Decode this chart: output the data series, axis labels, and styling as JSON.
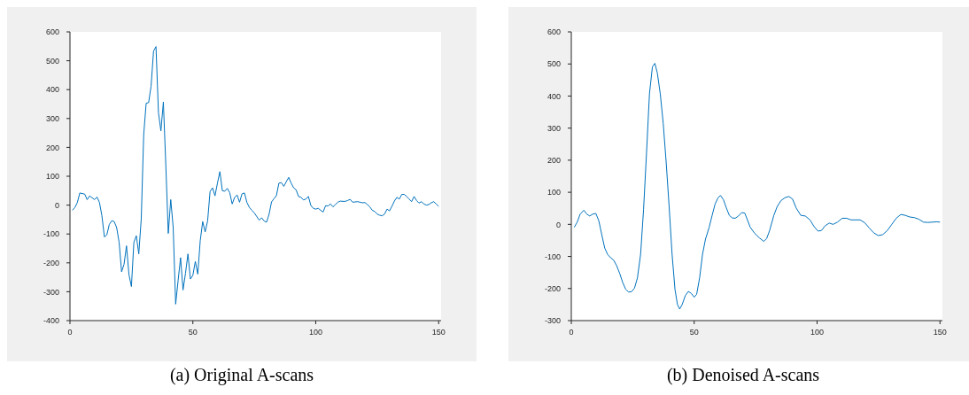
{
  "chart_data": [
    {
      "type": "line",
      "title": "(a) Original A-scans",
      "xlim": [
        0,
        151
      ],
      "xticks": [
        0,
        50,
        100,
        150
      ],
      "ylim": [
        -400,
        600
      ],
      "yticks": [
        -400,
        -300,
        -200,
        -100,
        0,
        100,
        200,
        300,
        400,
        500,
        600
      ],
      "marker": "none",
      "line_style": "solid",
      "series": [
        {
          "color": "#0072bd",
          "x": [
            1,
            2,
            3,
            4,
            6,
            7,
            8,
            10,
            11,
            12,
            13,
            14,
            15,
            16,
            17,
            18,
            19,
            20,
            21,
            22,
            23,
            24,
            25,
            26,
            27,
            28,
            29,
            30,
            31,
            32,
            33,
            34,
            35,
            36,
            37,
            38,
            39,
            40,
            41,
            42,
            43,
            44,
            45,
            46,
            47,
            48,
            49,
            50,
            51,
            52,
            53,
            54,
            55,
            56,
            57,
            58,
            59,
            60,
            61,
            62,
            63,
            64,
            65,
            66,
            67,
            68,
            69,
            70,
            71,
            72,
            73,
            74,
            75,
            77,
            78,
            79,
            80,
            81,
            82,
            83,
            84,
            85,
            86,
            87,
            88,
            89,
            90,
            91,
            92,
            93,
            94,
            95,
            96,
            97,
            98,
            99,
            100,
            101,
            102,
            103,
            104,
            105,
            106,
            107,
            108,
            109,
            110,
            111,
            112,
            113,
            114,
            115,
            116,
            117,
            118,
            119,
            120,
            121,
            122,
            123,
            124,
            125,
            126,
            127,
            128,
            129,
            130,
            131,
            132,
            133,
            134,
            135,
            136,
            137,
            138,
            139,
            140,
            141,
            142,
            143,
            144,
            145,
            146,
            147,
            148,
            149,
            150
          ],
          "values": [
            -18,
            -8,
            9,
            42,
            38,
            19,
            32,
            19,
            28,
            9,
            -37,
            -110,
            -103,
            -67,
            -54,
            -57,
            -78,
            -129,
            -231,
            -205,
            -141,
            -241,
            -282,
            -129,
            -106,
            -169,
            -47,
            244,
            353,
            355,
            412,
            533,
            549,
            320,
            257,
            357,
            137,
            -98,
            19,
            -78,
            -343,
            -261,
            -182,
            -294,
            -236,
            -169,
            -256,
            -243,
            -195,
            -239,
            -123,
            -57,
            -93,
            -55,
            47,
            60,
            32,
            76,
            116,
            50,
            48,
            58,
            43,
            4,
            27,
            35,
            10,
            39,
            42,
            9,
            -8,
            -18,
            -27,
            -52,
            -44,
            -55,
            -59,
            -32,
            11,
            22,
            33,
            76,
            78,
            65,
            81,
            96,
            76,
            60,
            53,
            30,
            27,
            18,
            21,
            30,
            -1,
            -11,
            -14,
            -11,
            -18,
            -24,
            -2,
            -3,
            4,
            -6,
            2,
            10,
            14,
            13,
            13,
            16,
            20,
            10,
            11,
            12,
            10,
            8,
            9,
            2,
            -6,
            -18,
            -22,
            -31,
            -35,
            -37,
            -31,
            -14,
            -20,
            -4,
            14,
            27,
            21,
            37,
            37,
            30,
            21,
            12,
            30,
            16,
            7,
            12,
            4,
            0,
            2,
            8,
            12,
            4,
            -4
          ]
        }
      ]
    },
    {
      "type": "line",
      "title": "(b) Denoised A-scans",
      "xlim": [
        0,
        151
      ],
      "xticks": [
        0,
        50,
        100,
        150
      ],
      "ylim": [
        -300,
        600
      ],
      "yticks": [
        -300,
        -200,
        -100,
        0,
        100,
        200,
        300,
        400,
        500,
        600
      ],
      "marker": "none",
      "line_style": "solid",
      "series": [
        {
          "color": "#0072bd",
          "x": [
            1.2,
            2.4,
            3.6,
            5.1,
            6.3,
            7.5,
            8.7,
            10,
            11.2,
            12.4,
            13.6,
            14.8,
            16,
            17.2,
            18.4,
            19.7,
            20.9,
            22.1,
            23.3,
            24.5,
            25.7,
            26.9,
            28.2,
            29.4,
            30.6,
            31.8,
            33,
            34,
            35,
            36.2,
            37.4,
            38.6,
            39.8,
            41,
            42.2,
            43.2,
            44.1,
            45.1,
            46.4,
            47.6,
            48.8,
            50,
            51,
            52.2,
            53.4,
            54.6,
            56.1,
            57.3,
            58.5,
            59.7,
            60.7,
            61.9,
            63.1,
            64.3,
            65.5,
            66.7,
            68,
            69.4,
            70.6,
            72.8,
            74.6,
            76.5,
            78.3,
            79.5,
            80.7,
            82.4,
            83.8,
            85.3,
            86.9,
            88.5,
            90,
            91.5,
            93.4,
            95.2,
            97.1,
            98.8,
            100.4,
            101.8,
            103.2,
            104.9,
            106.5,
            108.3,
            110.2,
            112,
            113.8,
            115.7,
            117.5,
            119.4,
            121.2,
            123,
            124.9,
            126.7,
            128.6,
            130.4,
            132.2,
            134.1,
            135.9,
            137.7,
            139.6,
            141.4,
            143.3,
            145.1,
            147,
            148.8,
            150
          ],
          "values": [
            -9,
            7,
            32,
            44,
            32,
            26,
            32,
            34,
            11,
            -32,
            -74,
            -94,
            -104,
            -111,
            -128,
            -153,
            -181,
            -202,
            -211,
            -210,
            -199,
            -167,
            -93,
            46,
            222,
            407,
            491,
            502,
            472,
            407,
            315,
            194,
            56,
            -93,
            -204,
            -250,
            -264,
            -250,
            -222,
            -209,
            -215,
            -227,
            -218,
            -167,
            -93,
            -46,
            -9,
            28,
            63,
            83,
            90,
            77,
            51,
            28,
            20,
            19,
            26,
            37,
            35,
            -9,
            -28,
            -42,
            -53,
            -44,
            -19,
            28,
            56,
            74,
            83,
            87,
            79,
            51,
            28,
            26,
            14,
            -7,
            -21,
            -19,
            -5,
            4,
            0,
            7,
            19,
            19,
            14,
            14,
            14,
            5,
            -11,
            -26,
            -35,
            -32,
            -19,
            0,
            19,
            31,
            28,
            23,
            21,
            16,
            7,
            6,
            7,
            8,
            7
          ]
        }
      ]
    }
  ]
}
